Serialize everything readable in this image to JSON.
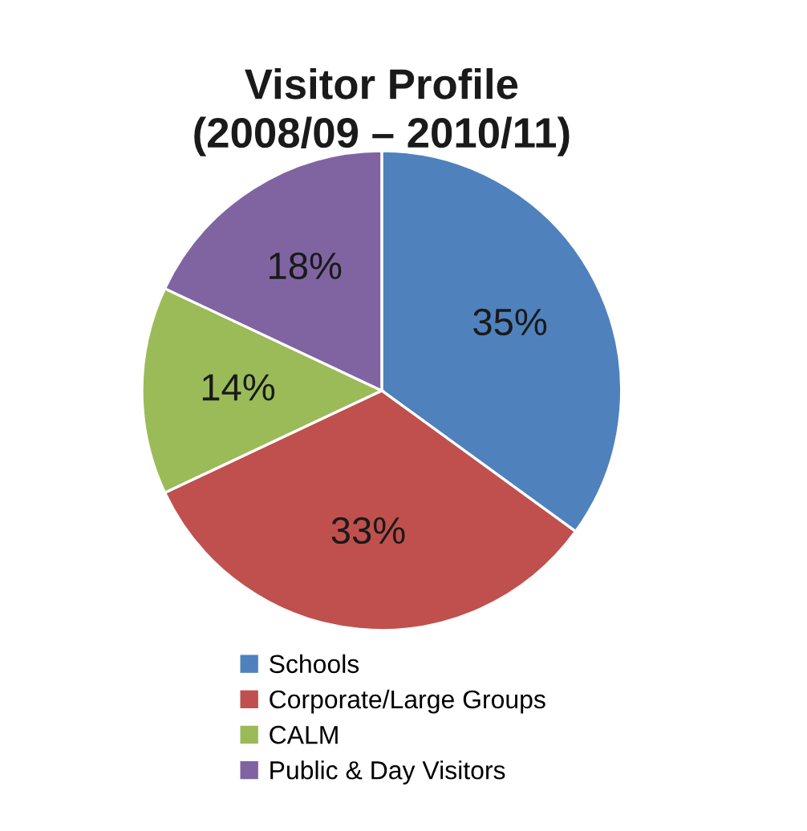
{
  "chart_data": {
    "type": "pie",
    "title": "Visitor Profile\n(2008/09 – 2010/11)",
    "categories": [
      "Schools",
      "Corporate/Large Groups",
      "CALM",
      "Public & Day Visitors"
    ],
    "values": [
      35,
      33,
      14,
      18
    ],
    "colors": [
      "#4f81bd",
      "#c0504d",
      "#9bbb59",
      "#8064a2"
    ],
    "value_labels": [
      "35%",
      "33%",
      "14%",
      "18%"
    ],
    "legend": "bottom"
  }
}
